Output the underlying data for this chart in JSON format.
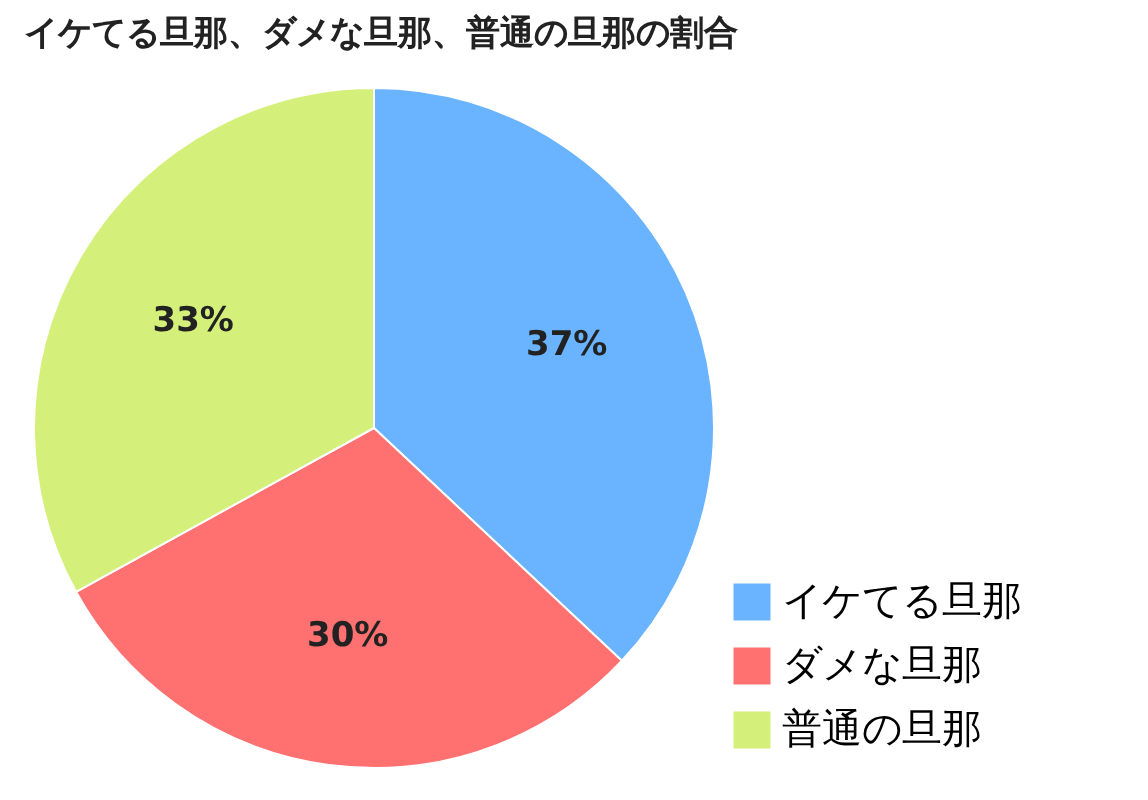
{
  "chart_data": {
    "type": "pie",
    "title": "イケてる旦那、ダメな旦那、普通の旦那の割合",
    "categories": [
      "イケてる旦那",
      "ダメな旦那",
      "普通の旦那"
    ],
    "values": [
      37,
      30,
      33
    ],
    "colors": [
      "#6ab4ff",
      "#ff7070",
      "#d4f07a"
    ],
    "value_labels": [
      "37%",
      "30%",
      "33%"
    ],
    "legend": "bottom right"
  }
}
